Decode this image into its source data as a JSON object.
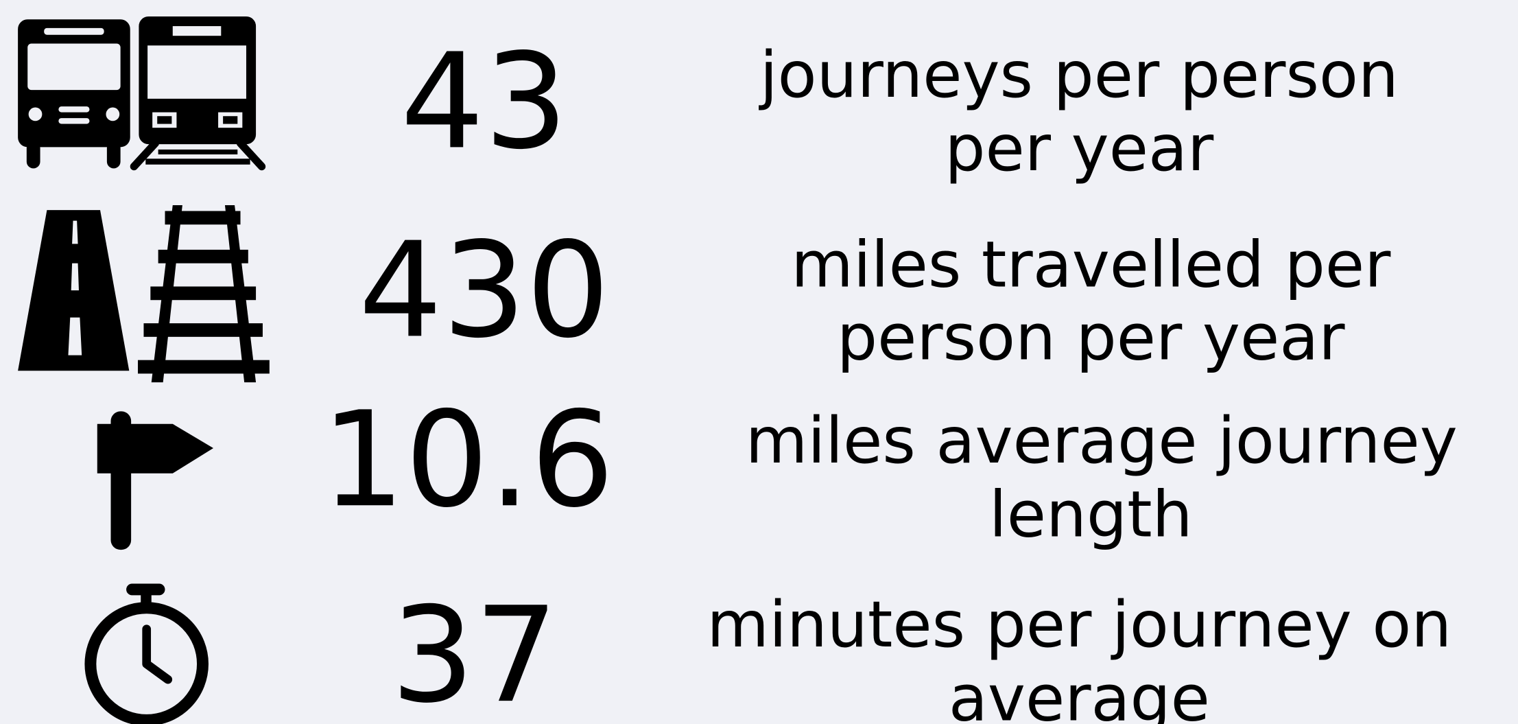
{
  "rows": [
    {
      "value": 43,
      "label": [
        "journeys per person",
        "per year"
      ]
    },
    {
      "value": 430,
      "label": [
        "miles travelled per",
        "person per year"
      ]
    },
    {
      "value": 10.6,
      "label": [
        "miles average journey",
        "length"
      ]
    },
    {
      "value": 37,
      "label": [
        "minutes per journey on",
        "average"
      ]
    }
  ]
}
